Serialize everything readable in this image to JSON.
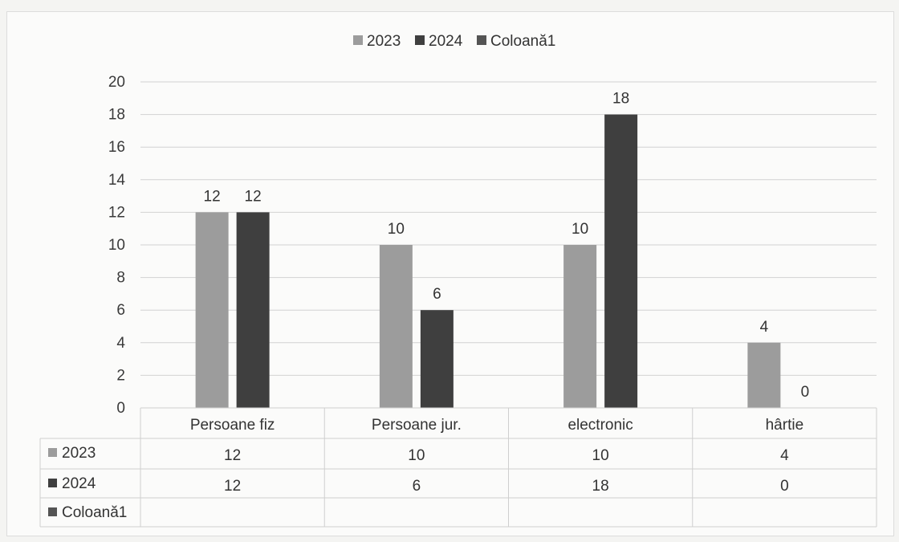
{
  "chart_data": {
    "type": "bar",
    "categories": [
      "Persoane fiz",
      "Persoane jur.",
      "electronic",
      "hârtie"
    ],
    "series": [
      {
        "name": "2023",
        "values": [
          12,
          10,
          10,
          4
        ],
        "color": "#9c9c9c"
      },
      {
        "name": "2024",
        "values": [
          12,
          6,
          18,
          0
        ],
        "color": "#3f3f3f"
      },
      {
        "name": "Coloană1",
        "values": [
          null,
          null,
          null,
          null
        ],
        "color": "#545454"
      }
    ],
    "ylim": [
      0,
      20
    ],
    "yticks": [
      0,
      2,
      4,
      6,
      8,
      10,
      12,
      14,
      16,
      18,
      20
    ],
    "grid": true,
    "legend": "top",
    "data_table": true
  }
}
